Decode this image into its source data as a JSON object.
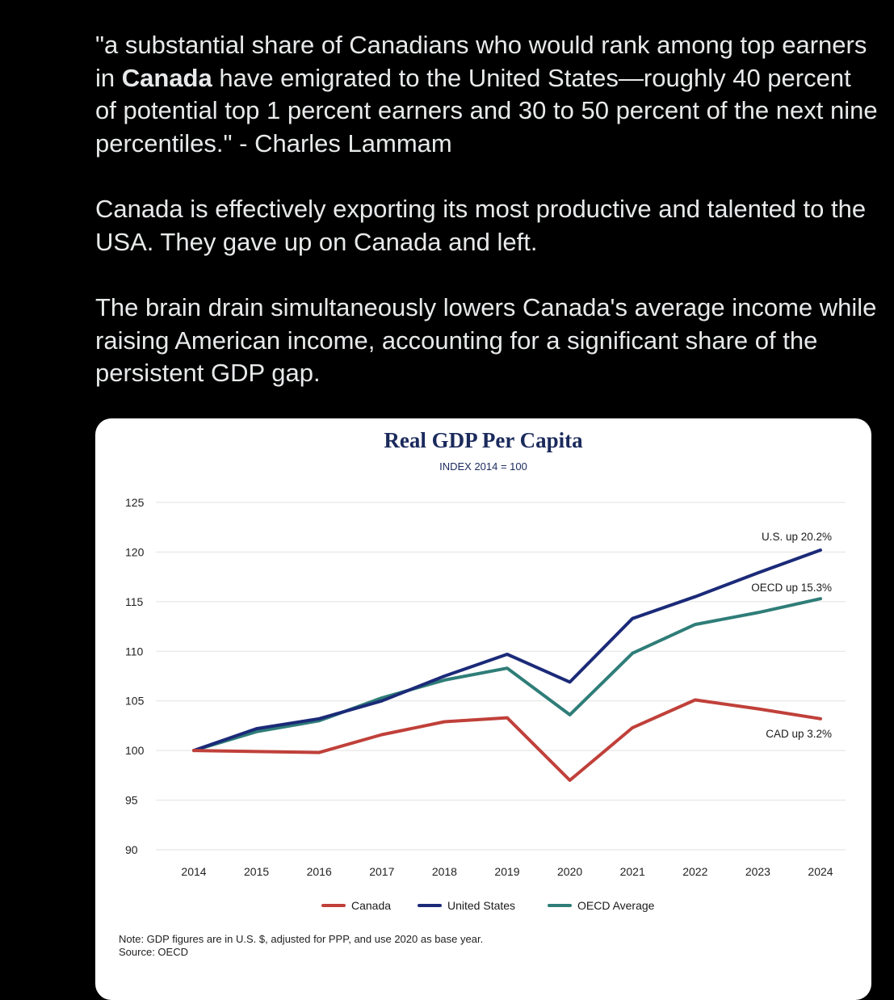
{
  "post": {
    "paragraph1_part1": "\"a substantial share of Canadians who would rank among top earners in ",
    "paragraph1_bold": "Canada",
    "paragraph1_part2": " have emigrated to the United States—roughly 40 percent of potential top 1 percent earners and 30 to 50 percent of the next nine percentiles.\" - Charles Lammam",
    "paragraph2": "Canada is effectively exporting its most productive and talented to the USA. They gave up on Canada and left.",
    "paragraph3": "The brain drain simultaneously lowers Canada's average income while raising American income, accounting for a significant share of the persistent GDP gap."
  },
  "chart_data": {
    "type": "line",
    "title": "Real GDP Per Capita",
    "subtitle": "INDEX 2014 = 100",
    "x": [
      "2014",
      "2015",
      "2016",
      "2017",
      "2018",
      "2019",
      "2020",
      "2021",
      "2022",
      "2023",
      "2024"
    ],
    "ylim": [
      90,
      125
    ],
    "yticks": [
      90,
      95,
      100,
      105,
      110,
      115,
      120,
      125
    ],
    "grid": true,
    "legend_position": "bottom",
    "series": [
      {
        "name": "Canada",
        "color": "#c0403a",
        "values": [
          100,
          99.9,
          99.8,
          101.6,
          102.9,
          103.3,
          97.0,
          102.3,
          105.1,
          104.2,
          103.2
        ],
        "annotation": "CAD up 3.2%"
      },
      {
        "name": "United States",
        "color": "#1b2a78",
        "values": [
          100,
          102.2,
          103.2,
          105.0,
          107.5,
          109.7,
          106.9,
          113.3,
          115.5,
          117.9,
          120.2
        ],
        "annotation": "U.S. up 20.2%"
      },
      {
        "name": "OECD Average",
        "color": "#2f7d78",
        "values": [
          100,
          101.9,
          103.0,
          105.3,
          107.1,
          108.3,
          103.6,
          109.8,
          112.7,
          113.9,
          115.3
        ],
        "annotation": "OECD up 15.3%"
      }
    ],
    "note": "Note: GDP figures are in U.S. $, adjusted for PPP, and use 2020 as base year.",
    "source": "Source: OECD"
  }
}
